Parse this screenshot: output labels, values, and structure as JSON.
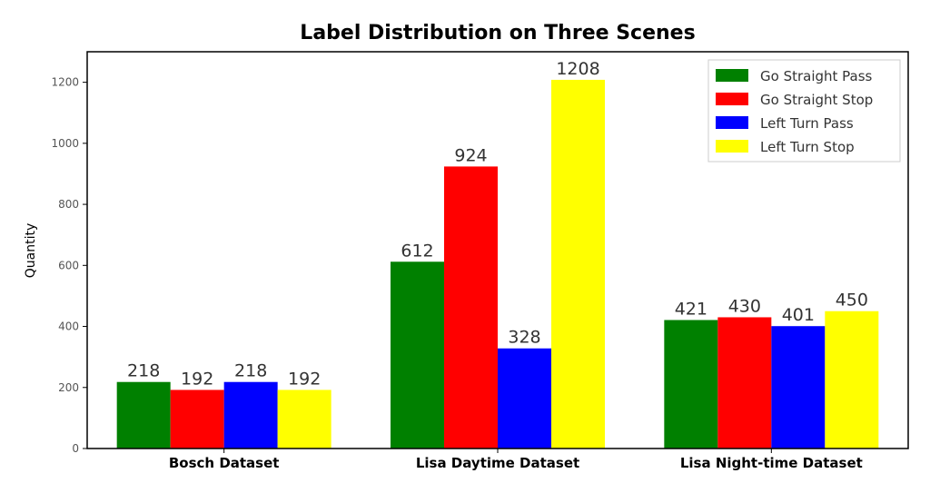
{
  "chart_data": {
    "type": "bar",
    "title": "Label Distribution on Three Scenes",
    "xlabel": "",
    "ylabel": "Quantity",
    "ylim": [
      0,
      1300
    ],
    "yticks": [
      0,
      200,
      400,
      600,
      800,
      1000,
      1200
    ],
    "categories": [
      "Bosch Dataset",
      "Lisa Daytime Dataset",
      "Lisa Night-time Dataset"
    ],
    "series": [
      {
        "name": "Go Straight Pass",
        "color": "#008000",
        "values": [
          218,
          612,
          421
        ]
      },
      {
        "name": "Go Straight Stop",
        "color": "#ff0000",
        "values": [
          192,
          924,
          430
        ]
      },
      {
        "name": "Left Turn Pass",
        "color": "#0000ff",
        "values": [
          218,
          328,
          401
        ]
      },
      {
        "name": "Left Turn Stop",
        "color": "#ffff00",
        "values": [
          192,
          1208,
          450
        ]
      }
    ],
    "legend_position": "top-right",
    "grid": false
  }
}
